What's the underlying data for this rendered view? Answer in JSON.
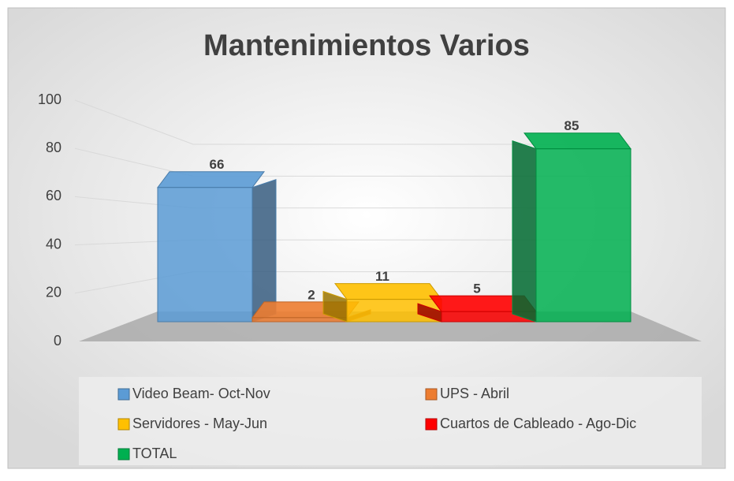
{
  "chart_data": {
    "type": "bar3d",
    "title": "Mantenimientos Varios",
    "series": [
      {
        "name": "Video Beam- Oct-Nov",
        "color": "#5b9bd5",
        "values": [
          66
        ]
      },
      {
        "name": "UPS - Abril",
        "color": "#ed7d31",
        "values": [
          2
        ]
      },
      {
        "name": "Servidores - May-Jun",
        "color": "#ffc000",
        "values": [
          11
        ]
      },
      {
        "name": "Cuartos de Cableado - Ago-Dic",
        "color": "#ff0000",
        "values": [
          5
        ]
      },
      {
        "name": "TOTAL",
        "color": "#00b050",
        "values": [
          85
        ]
      }
    ],
    "ylim": [
      0,
      100
    ],
    "yticks": [
      0,
      20,
      40,
      60,
      80,
      100
    ],
    "grid": true,
    "legend": "bottom"
  }
}
